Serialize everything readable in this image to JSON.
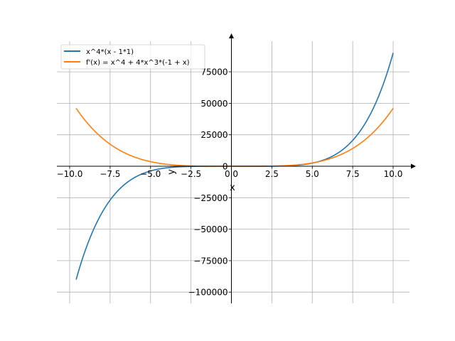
{
  "chart_data": {
    "type": "line",
    "title": "",
    "xlabel": "x",
    "ylabel": "y",
    "xlim": [
      -10.5,
      11.3
    ],
    "ylim": [
      -108000,
      104000
    ],
    "grid": true,
    "legend_placement": "top-left",
    "x_ticks": [
      -10.0,
      -7.5,
      -5.0,
      -2.5,
      0.0,
      2.5,
      5.0,
      7.5,
      10.0
    ],
    "x_tick_labels": [
      "−10.0",
      "−7.5",
      "−5.0",
      "−2.5",
      "0.0",
      "2.5",
      "5.0",
      "7.5",
      "10.0"
    ],
    "y_ticks": [
      -100000,
      -75000,
      -50000,
      -25000,
      0,
      25000,
      50000,
      75000
    ],
    "y_tick_labels": [
      "−100000",
      "−75000",
      "−50000",
      "−25000",
      "0",
      "25000",
      "50000",
      "75000"
    ],
    "x_range": [
      -9.6,
      10
    ],
    "series": [
      {
        "name": "x^4*(x - 1*1)",
        "expr": "x^4*(x-1)",
        "color": "#1f77b4"
      },
      {
        "name": "f'(x) = x^4 + 4*x^3*(-1 + x)",
        "expr": "x^4+4*x^3*(x-1)",
        "color": "#ff7f0e"
      }
    ]
  }
}
